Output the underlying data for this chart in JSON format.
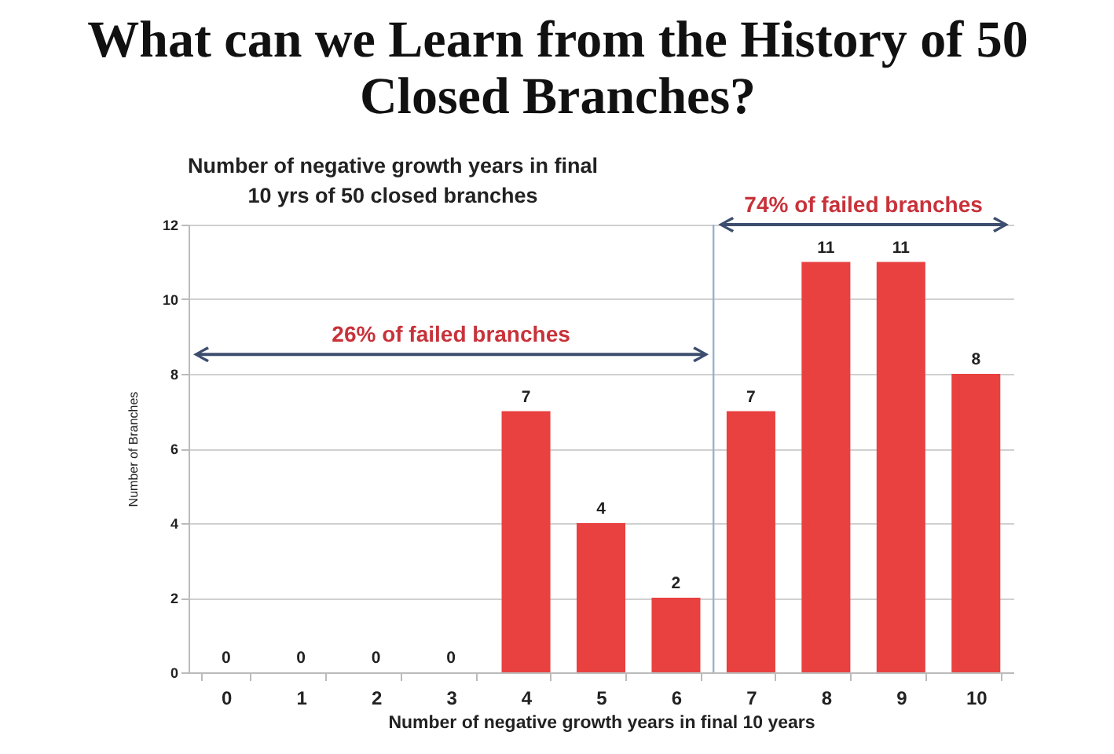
{
  "chart_data": {
    "type": "bar",
    "title": "What can we Learn from the History of 50 Closed Branches?",
    "subtitle": "Number of negative growth years in final 10 yrs of 50 closed branches",
    "xlabel": "Number of negative growth years in final 10 years",
    "ylabel": "Number of Branches",
    "categories": [
      "0",
      "1",
      "2",
      "3",
      "4",
      "5",
      "6",
      "7",
      "8",
      "9",
      "10"
    ],
    "values": [
      0,
      0,
      0,
      0,
      7,
      4,
      2,
      7,
      11,
      11,
      8
    ],
    "color": "#e94040",
    "ylim": [
      0,
      12
    ],
    "yticks": [
      0,
      2,
      4,
      6,
      8,
      10,
      12
    ],
    "grid": "y",
    "data_labels": true,
    "ref_lines": [
      {
        "axis": "x",
        "value": "7",
        "color": "#9ab0d0"
      }
    ],
    "annotations": [
      "26% of failed branches",
      "74% of failed branches"
    ]
  }
}
